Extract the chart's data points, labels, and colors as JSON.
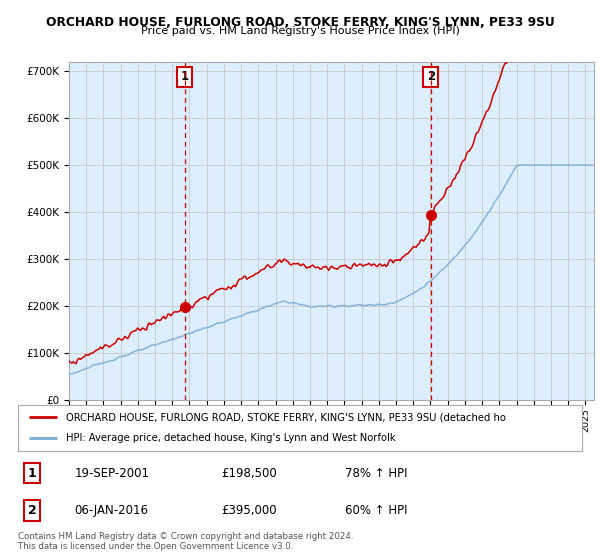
{
  "title1": "ORCHARD HOUSE, FURLONG ROAD, STOKE FERRY, KING'S LYNN, PE33 9SU",
  "title2": "Price paid vs. HM Land Registry's House Price Index (HPI)",
  "legend_red": "ORCHARD HOUSE, FURLONG ROAD, STOKE FERRY, KING'S LYNN, PE33 9SU (detached ho",
  "legend_blue": "HPI: Average price, detached house, King's Lynn and West Norfolk",
  "marker1_date": "19-SEP-2001",
  "marker1_price": "£198,500",
  "marker1_pct": "78% ↑ HPI",
  "marker2_date": "06-JAN-2016",
  "marker2_price": "£395,000",
  "marker2_pct": "60% ↑ HPI",
  "footer": "Contains HM Land Registry data © Crown copyright and database right 2024.\nThis data is licensed under the Open Government Licence v3.0.",
  "red_color": "#cc0000",
  "blue_color": "#7aaed6",
  "shade_color": "#ddeeff",
  "bg_color": "#ffffff",
  "grid_color": "#cccccc",
  "marker1_x_year": 2001.72,
  "marker2_x_year": 2016.02,
  "ylim": [
    0,
    720000
  ],
  "yticks": [
    0,
    100000,
    200000,
    300000,
    400000,
    500000,
    600000,
    700000
  ],
  "xlim_start": 1995.0,
  "xlim_end": 2025.5
}
